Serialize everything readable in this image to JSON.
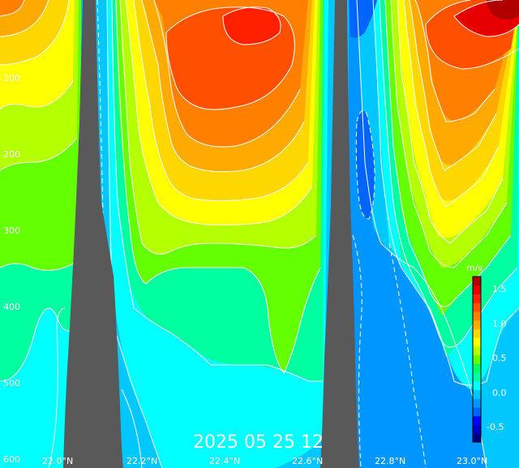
{
  "title": "2025 05 25 12",
  "depth_labels": [
    "100",
    "200",
    "300",
    "400",
    "500",
    "600"
  ],
  "lat_labels": [
    "22.0°N",
    "22.2°N",
    "22.4°N",
    "22.6°N",
    "22.8°N",
    "23.0°N"
  ],
  "colorbar": {
    "units": "m/s",
    "labels": [
      "1.5",
      "1.0",
      "0.5",
      "0.0",
      "-0.5"
    ],
    "colors": [
      "#000080",
      "#0000c8",
      "#0000ff",
      "#0064ff",
      "#0096ff",
      "#00c8ff",
      "#00ffff",
      "#00ffa0",
      "#00ff64",
      "#64ff00",
      "#b4ff00",
      "#ffff00",
      "#ffd700",
      "#ffaa00",
      "#ff8000",
      "#ff5000",
      "#ff2000",
      "#e60000",
      "#b00000"
    ]
  },
  "colors": {
    "terrain": "#595959",
    "contour": "#ffffff",
    "background": "#00c8ff"
  }
}
